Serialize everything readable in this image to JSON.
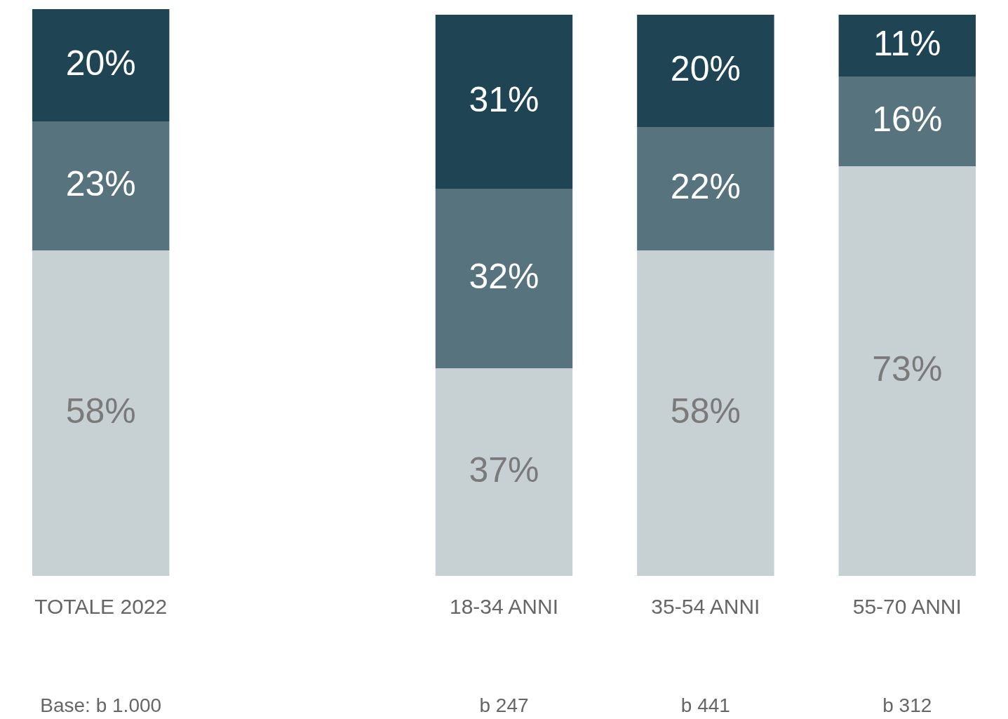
{
  "chart_data": {
    "type": "bar",
    "stacked": true,
    "tick_labels": "x",
    "legend": false,
    "grid": false,
    "categories": [
      "TOTALE 2022",
      null,
      "18-34 ANNI",
      "35-54 ANNI",
      "55-70 ANNI"
    ],
    "series": [
      {
        "color": "#c7d1d4",
        "values": [
          58,
          null,
          37,
          58,
          73
        ],
        "value_labels": [
          "58%",
          null,
          "37%",
          "58%",
          "73%"
        ]
      },
      {
        "color": "#57737d",
        "values": [
          23,
          null,
          32,
          22,
          16
        ],
        "value_labels": [
          "23%",
          null,
          "32%",
          "22%",
          "16%"
        ]
      },
      {
        "color": "#1f4453",
        "values": [
          20,
          null,
          31,
          20,
          11
        ],
        "value_labels": [
          "20%",
          null,
          "31%",
          "20%",
          "11%"
        ]
      }
    ],
    "annotations": [
      "Base: b 1.000",
      "b 247",
      "b 441",
      "b 312"
    ]
  }
}
